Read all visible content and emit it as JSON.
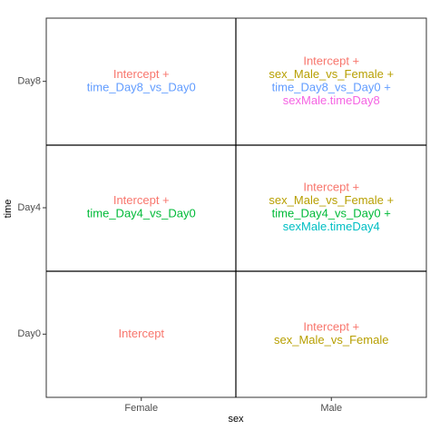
{
  "chart_data": {
    "type": "tile",
    "x_label": "sex",
    "y_label": "time",
    "x_categories": [
      "Female",
      "Male"
    ],
    "y_categories": [
      "Day0",
      "Day4",
      "Day8"
    ],
    "cells": [
      [
        [
          {
            "text": "Intercept",
            "color": "#F8766D"
          }
        ],
        [
          {
            "text": "Intercept +",
            "color": "#F8766D"
          },
          {
            "text": "sex_Male_vs_Female",
            "color": "#B79F00"
          }
        ]
      ],
      [
        [
          {
            "text": "Intercept +",
            "color": "#F8766D"
          },
          {
            "text": "time_Day4_vs_Day0",
            "color": "#00BA38"
          }
        ],
        [
          {
            "text": "Intercept +",
            "color": "#F8766D"
          },
          {
            "text": "sex_Male_vs_Female +",
            "color": "#B79F00"
          },
          {
            "text": "time_Day4_vs_Day0 +",
            "color": "#00BA38"
          },
          {
            "text": "sexMale.timeDay4",
            "color": "#00BFC4"
          }
        ]
      ],
      [
        [
          {
            "text": "Intercept +",
            "color": "#F8766D"
          },
          {
            "text": "time_Day8_vs_Day0",
            "color": "#619CFF"
          }
        ],
        [
          {
            "text": "Intercept +",
            "color": "#F8766D"
          },
          {
            "text": "sex_Male_vs_Female +",
            "color": "#B79F00"
          },
          {
            "text": "time_Day8_vs_Day0 +",
            "color": "#619CFF"
          },
          {
            "text": "sexMale.timeDay8",
            "color": "#F564E3"
          }
        ]
      ]
    ]
  }
}
